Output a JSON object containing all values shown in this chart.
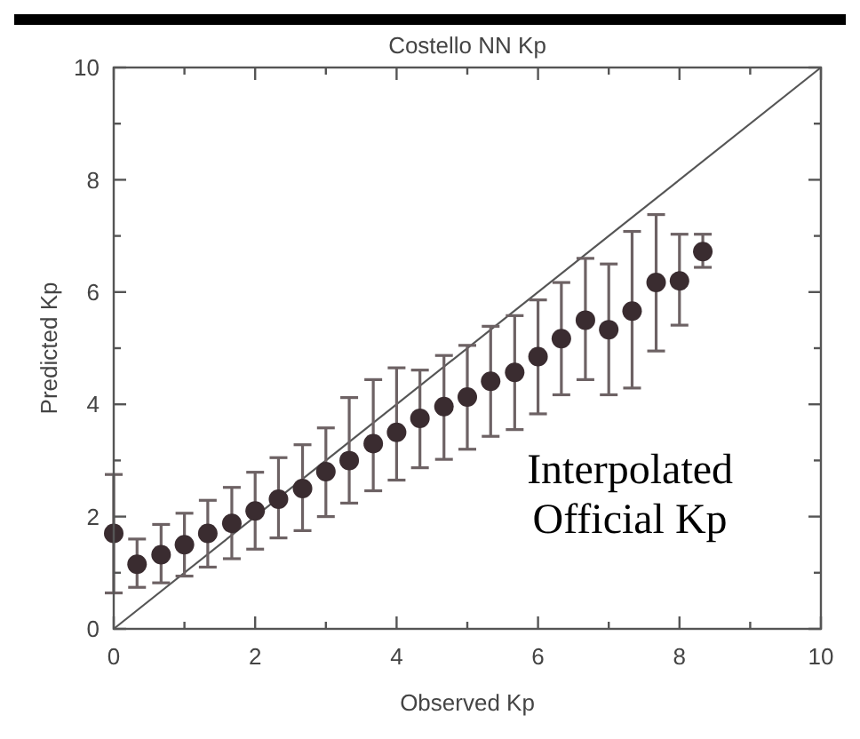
{
  "chart_data": {
    "type": "scatter",
    "title": "Costello NN Kp",
    "xlabel": "Observed Kp",
    "ylabel": "Predicted Kp",
    "xlim": [
      0,
      10
    ],
    "ylim": [
      0,
      10
    ],
    "xticks": [
      0,
      {
        "value": 1,
        "label": null
      },
      2,
      {
        "value": 3,
        "label": null
      },
      4,
      {
        "value": 5,
        "label": null
      },
      6,
      {
        "value": 7,
        "label": null
      },
      8,
      {
        "value": 9,
        "label": null
      },
      10
    ],
    "yticks": [
      0,
      {
        "value": 1,
        "label": null
      },
      2,
      {
        "value": 3,
        "label": null
      },
      4,
      {
        "value": 5,
        "label": null
      },
      6,
      {
        "value": 7,
        "label": null
      },
      8,
      {
        "value": 9,
        "label": null
      },
      10
    ],
    "grid": false,
    "annotations": [
      "Interpolated Official Kp"
    ],
    "series": [
      {
        "color": "#3a2c30",
        "marker": "circle",
        "x": [
          0,
          0.33,
          0.67,
          1,
          1.33,
          1.67,
          2,
          2.33,
          2.67,
          3,
          3.33,
          3.67,
          4,
          4.33,
          4.67,
          5,
          5.33,
          5.67,
          6,
          6.33,
          6.67,
          7,
          7.33,
          7.67,
          8,
          8.33
        ],
        "values": [
          1.7,
          1.15,
          1.32,
          1.5,
          1.7,
          1.88,
          2.1,
          2.31,
          2.5,
          2.8,
          3.0,
          3.3,
          3.5,
          3.75,
          3.96,
          4.13,
          4.41,
          4.57,
          4.85,
          5.17,
          5.5,
          5.33,
          5.66,
          6.17,
          6.2,
          6.72
        ],
        "errors": [
          [
            0.64,
            2.75
          ],
          [
            0.74,
            1.6
          ],
          [
            0.82,
            1.86
          ],
          [
            0.94,
            2.06
          ],
          [
            1.1,
            2.29
          ],
          [
            1.25,
            2.52
          ],
          [
            1.42,
            2.79
          ],
          [
            1.62,
            3.05
          ],
          [
            1.75,
            3.28
          ],
          [
            2.0,
            3.58
          ],
          [
            2.24,
            4.12
          ],
          [
            2.46,
            4.44
          ],
          [
            2.65,
            4.65
          ],
          [
            2.87,
            4.61
          ],
          [
            3.02,
            4.87
          ],
          [
            3.2,
            5.05
          ],
          [
            3.43,
            5.39
          ],
          [
            3.55,
            5.58
          ],
          [
            3.83,
            5.86
          ],
          [
            4.17,
            6.17
          ],
          [
            4.44,
            6.6
          ],
          [
            4.17,
            6.5
          ],
          [
            4.29,
            7.08
          ],
          [
            4.95,
            7.38
          ],
          [
            5.41,
            7.03
          ],
          [
            6.44,
            7.03
          ]
        ]
      },
      {
        "type": "line",
        "color": "#555555",
        "x": [
          0,
          10
        ],
        "values": [
          0,
          10
        ],
        "marker": "none",
        "line_style": "solid"
      }
    ]
  }
}
